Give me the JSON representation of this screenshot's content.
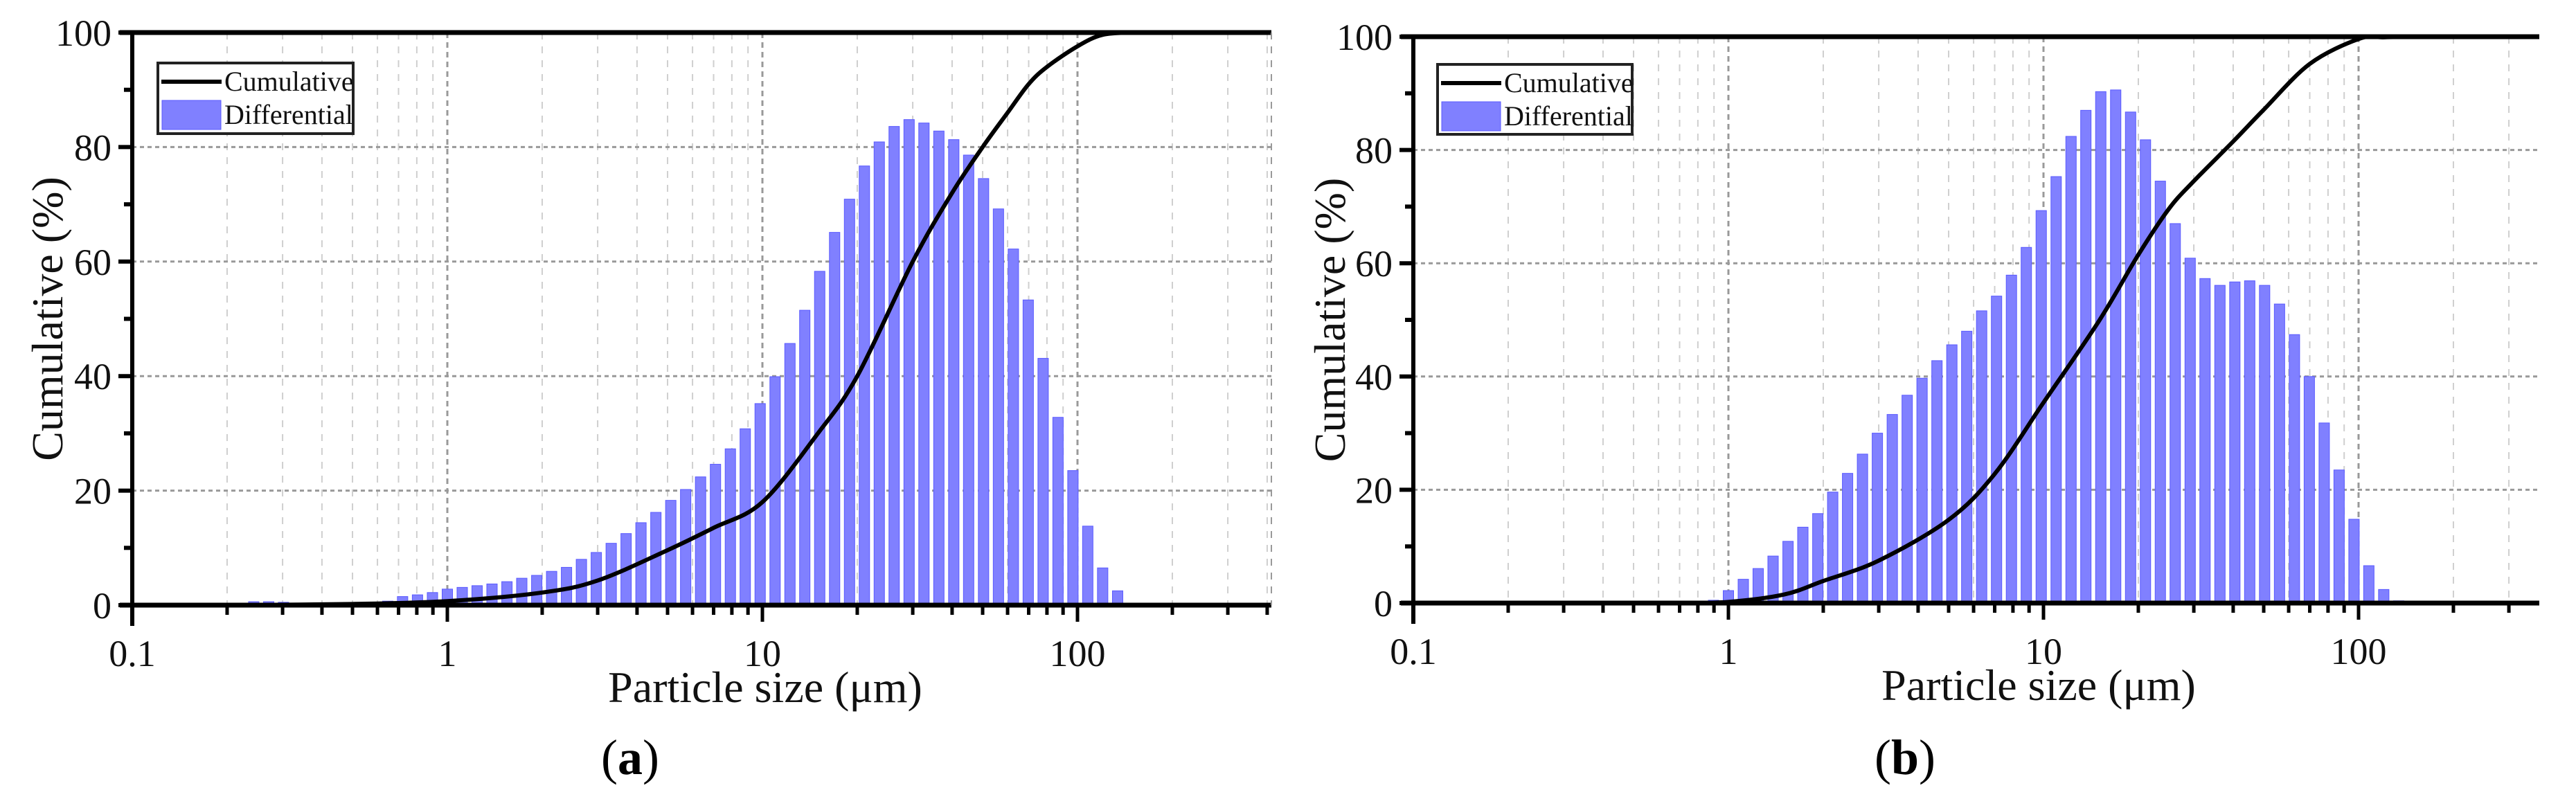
{
  "figure": {
    "panels": [
      {
        "caption_open": "(",
        "caption_letter": "a",
        "caption_close": ")"
      },
      {
        "caption_open": "(",
        "caption_letter": "b",
        "caption_close": ")"
      }
    ]
  },
  "colors": {
    "bar_fill": "#8080ff",
    "bar_edge": "#5a5aff",
    "curve": "#000000",
    "grid": "#b0b0b0",
    "axis": "#000000"
  },
  "chart_data": [
    {
      "type": "bar+line",
      "panel": "a",
      "title": "",
      "xlabel": "Particle size (μm)",
      "ylabel": "Cumulative (%)",
      "xscale": "log",
      "xlim": [
        0.1,
        400
      ],
      "ylim": [
        0,
        100
      ],
      "xticks": [
        0.1,
        1,
        10,
        100
      ],
      "xtick_labels": [
        "0.1",
        "1",
        "10",
        "100"
      ],
      "yticks": [
        0,
        20,
        40,
        60,
        80,
        100
      ],
      "ytick_labels": [
        "0",
        "20",
        "40",
        "60",
        "80",
        "100"
      ],
      "grid": true,
      "legend": {
        "position": "upper left",
        "entries": [
          "Cumulative",
          "Differential"
        ]
      },
      "bar_ratio": 1.115,
      "bar_start_size": 0.218,
      "series": [
        {
          "name": "Differential",
          "type": "bar",
          "x": [
            0.218,
            0.243,
            0.271,
            0.302,
            0.337,
            0.375,
            0.418,
            0.466,
            0.52,
            0.58,
            0.647,
            0.721,
            0.804,
            0.897,
            1.0,
            1.115,
            1.243,
            1.386,
            1.546,
            1.723,
            1.922,
            2.143,
            2.389,
            2.664,
            2.97,
            3.312,
            3.693,
            4.117,
            4.591,
            5.119,
            5.707,
            6.364,
            7.096,
            7.912,
            8.821,
            9.836,
            10.97,
            12.23,
            13.63,
            15.2,
            16.95,
            18.9,
            21.07,
            23.49,
            26.19,
            29.21,
            32.56,
            36.31,
            40.49,
            45.14,
            50.33,
            56.12,
            62.58,
            69.77,
            77.8,
            86.74,
            96.72,
            107.8,
            120.2,
            134.1
          ],
          "values": [
            0.3,
            0.6,
            0.6,
            0.5,
            0.2,
            0.1,
            0.1,
            0.1,
            0.1,
            0.5,
            0.7,
            1.5,
            1.8,
            2.2,
            2.8,
            3.1,
            3.4,
            3.7,
            4.1,
            4.7,
            5.2,
            5.9,
            6.6,
            8.0,
            9.2,
            10.8,
            12.5,
            14.4,
            16.2,
            18.3,
            20.2,
            22.4,
            24.6,
            27.3,
            30.8,
            35.2,
            39.9,
            45.7,
            51.5,
            58.3,
            65.1,
            70.9,
            76.7,
            80.9,
            83.6,
            84.8,
            84.2,
            82.8,
            81.3,
            78.6,
            74.5,
            69.2,
            62.2,
            53.3,
            43.1,
            32.8,
            23.5,
            13.8,
            6.5,
            2.5
          ]
        },
        {
          "name": "Cumulative",
          "type": "line",
          "x": [
            0.2,
            0.5,
            1,
            2,
            3,
            5,
            7,
            10,
            15,
            20,
            30,
            40,
            50,
            60,
            70,
            80,
            100,
            120,
            150
          ],
          "values": [
            0,
            0.2,
            0.7,
            2.2,
            4.3,
            9.6,
            13.5,
            18,
            30,
            40,
            60,
            72,
            80,
            86,
            91,
            94,
            97.6,
            99.6,
            100
          ]
        }
      ]
    },
    {
      "type": "bar+line",
      "panel": "b",
      "title": "",
      "xlabel": "Particle size (μm)",
      "ylabel": "Cumulative (%)",
      "xscale": "log",
      "xlim": [
        0.1,
        373
      ],
      "ylim": [
        0,
        100
      ],
      "xticks": [
        0.1,
        1,
        10,
        100
      ],
      "xtick_labels": [
        "0.1",
        "1",
        "10",
        "100"
      ],
      "yticks": [
        0,
        20,
        40,
        60,
        80,
        100
      ],
      "ytick_labels": [
        "0",
        "20",
        "40",
        "60",
        "80",
        "100"
      ],
      "grid": true,
      "legend": {
        "position": "upper left",
        "entries": [
          "Cumulative",
          "Differential"
        ]
      },
      "series": [
        {
          "name": "Differential",
          "type": "bar",
          "x": [
            0.804,
            0.897,
            1.0,
            1.115,
            1.243,
            1.386,
            1.546,
            1.723,
            1.922,
            2.143,
            2.389,
            2.664,
            2.97,
            3.312,
            3.693,
            4.117,
            4.591,
            5.119,
            5.707,
            6.364,
            7.096,
            7.912,
            8.821,
            9.836,
            10.97,
            12.23,
            13.63,
            15.2,
            16.95,
            18.9,
            21.07,
            23.49,
            26.19,
            29.21,
            32.56,
            36.31,
            40.49,
            45.14,
            50.33,
            56.12,
            62.58,
            69.77,
            77.8,
            86.74,
            96.72,
            107.8,
            120.2,
            134.1
          ],
          "values": [
            0.2,
            0.5,
            2.2,
            4.2,
            6.1,
            8.3,
            10.9,
            13.4,
            15.8,
            19.6,
            22.9,
            26.3,
            30.0,
            33.3,
            36.7,
            39.7,
            42.8,
            45.6,
            48.0,
            51.6,
            54.2,
            57.9,
            62.8,
            69.3,
            75.3,
            82.4,
            87.0,
            90.3,
            90.6,
            86.7,
            81.8,
            74.5,
            67.0,
            60.9,
            57.3,
            56.1,
            56.7,
            56.9,
            56.1,
            52.8,
            47.4,
            40.0,
            31.8,
            23.5,
            14.8,
            6.6,
            2.4,
            0.4
          ]
        },
        {
          "name": "Cumulative",
          "type": "line",
          "x": [
            0.7,
            1,
            1.5,
            2,
            3,
            5,
            7,
            10,
            15,
            20,
            25,
            30,
            40,
            50,
            70,
            100,
            120,
            150
          ],
          "values": [
            0,
            0.2,
            1.5,
            3.9,
            7.5,
            14.7,
            22.8,
            35.4,
            49.8,
            61.5,
            69.6,
            74.5,
            81.5,
            87.1,
            95.2,
            99.6,
            99.9,
            100
          ]
        }
      ]
    }
  ]
}
